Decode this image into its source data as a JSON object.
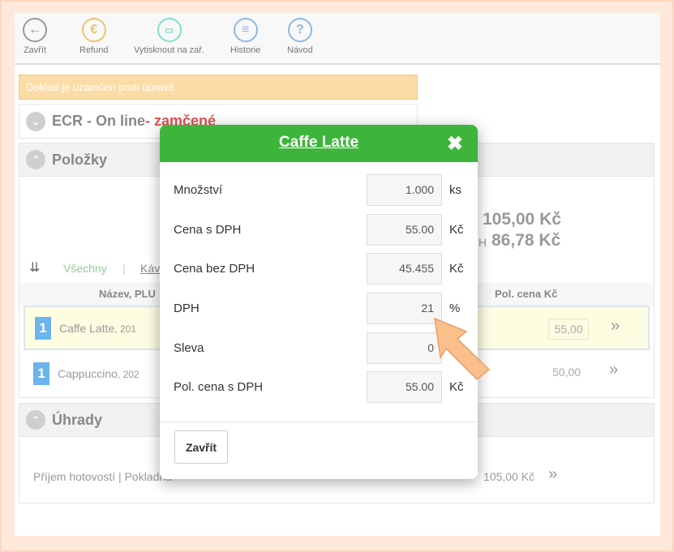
{
  "toolbar": {
    "items": [
      {
        "label": "Zavřít",
        "icon": "arrow-left-icon",
        "color": "#999999"
      },
      {
        "label": "Refund",
        "icon": "euro-icon",
        "color": "#e8c56a"
      },
      {
        "label": "Vytisknout na zař.",
        "icon": "print-to-device-icon",
        "color": "#7ee0cc"
      },
      {
        "label": "Historie",
        "icon": "menu-list-icon",
        "color": "#8fb8e0"
      },
      {
        "label": "Návod",
        "icon": "help-icon",
        "color": "#8fb8e0"
      }
    ]
  },
  "warning": "Doklad je uzamčen proti úpravě.",
  "ecr": {
    "title": "ECR - On line",
    "status": " - zamčené",
    "status_color": "#e05555"
  },
  "items_panel": {
    "title": "Položky",
    "total": "105,00 Kč",
    "total_net_label": "bez DPH",
    "total_net": "86,78 Kč",
    "filters": [
      "Všechny",
      "Kávy"
    ],
    "col_name": "Název, PLU",
    "col_price": "Pol. cena Kč",
    "rows": [
      {
        "qty": "1",
        "name": "Caffe Latte",
        "plu": ", 201",
        "price": "55,00",
        "selected": true
      },
      {
        "qty": "1",
        "name": "Cappuccino",
        "plu": ", 202",
        "price": "50,00",
        "selected": false
      }
    ]
  },
  "payments_panel": {
    "title": "Úhrady",
    "row_label": "Příjem hotovostí | Pokladna",
    "row_amount": "105,00 Kč"
  },
  "modal": {
    "title": "Caffe Latte",
    "close_label": "Zavřít",
    "header_color": "#3db53a",
    "fields": [
      {
        "label": "Množství",
        "value": "1.000",
        "unit": "ks"
      },
      {
        "label": "Cena s DPH",
        "value": "55.00",
        "unit": "Kč"
      },
      {
        "label": "Cena bez DPH",
        "value": "45.455",
        "unit": "Kč"
      },
      {
        "label": "DPH",
        "value": "21",
        "unit": "%"
      },
      {
        "label": "Sleva",
        "value": "0",
        "unit": ""
      },
      {
        "label": "Pol. cena s DPH",
        "value": "55.00",
        "unit": "Kč"
      }
    ]
  }
}
